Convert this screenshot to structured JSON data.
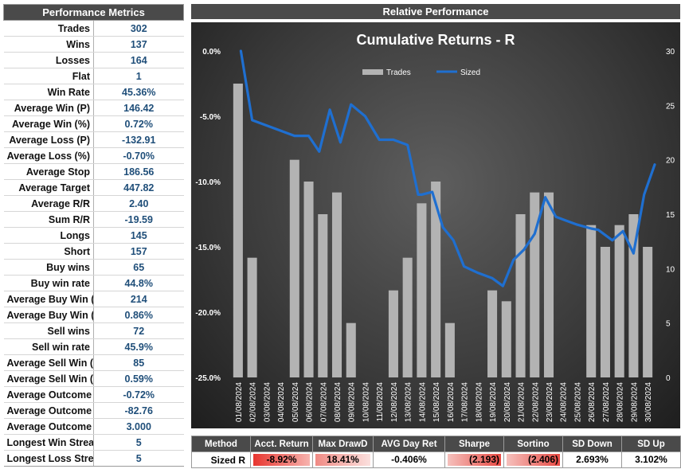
{
  "metrics": {
    "title": "Performance Metrics",
    "rows": [
      {
        "label": "Trades",
        "value": "302"
      },
      {
        "label": "Wins",
        "value": "137"
      },
      {
        "label": "Losses",
        "value": "164"
      },
      {
        "label": "Flat",
        "value": "1"
      },
      {
        "label": "Win Rate",
        "value": "45.36%"
      },
      {
        "label": "Average Win (P)",
        "value": "146.42"
      },
      {
        "label": "Average Win (%)",
        "value": "0.72%"
      },
      {
        "label": "Average Loss (P)",
        "value": "-132.91"
      },
      {
        "label": "Average Loss (%)",
        "value": "-0.70%"
      },
      {
        "label": "Average Stop",
        "value": "186.56"
      },
      {
        "label": "Average Target",
        "value": "447.82"
      },
      {
        "label": "Average R/R",
        "value": "2.40"
      },
      {
        "label": "Sum R/R",
        "value": "-19.59"
      },
      {
        "label": "Longs",
        "value": "145"
      },
      {
        "label": "Short",
        "value": "157"
      },
      {
        "label": "Buy wins",
        "value": "65"
      },
      {
        "label": "Buy win rate",
        "value": "44.8%"
      },
      {
        "label": "Average Buy Win (P)",
        "value": "214"
      },
      {
        "label": "Average Buy Win (%)",
        "value": "0.86%"
      },
      {
        "label": "Sell wins",
        "value": "72"
      },
      {
        "label": "Sell win rate",
        "value": "45.9%"
      },
      {
        "label": "Average Sell Win (P)",
        "value": "85"
      },
      {
        "label": "Average Sell Win (%)",
        "value": "0.59%"
      },
      {
        "label": "Average Outcome (%)",
        "value": "-0.72%"
      },
      {
        "label": "Average Outcome (P)",
        "value": "-82.76"
      },
      {
        "label": "Average Outcome (R)",
        "value": "3.000"
      },
      {
        "label": "Longest Win Streak",
        "value": "5"
      },
      {
        "label": "Longest Loss Streak",
        "value": "5"
      }
    ]
  },
  "relative": {
    "title": "Relative Performance"
  },
  "chart_data": {
    "type": "bar+line",
    "title": "Cumulative Returns - R",
    "legend_position": "top",
    "categories": [
      "01/08/2024",
      "02/08/2024",
      "03/08/2024",
      "04/08/2024",
      "05/08/2024",
      "06/08/2024",
      "07/08/2024",
      "08/08/2024",
      "09/08/2024",
      "10/08/2024",
      "11/08/2024",
      "12/08/2024",
      "13/08/2024",
      "14/08/2024",
      "15/08/2024",
      "16/08/2024",
      "17/08/2024",
      "18/08/2024",
      "19/08/2024",
      "20/08/2024",
      "21/08/2024",
      "22/08/2024",
      "23/08/2024",
      "24/08/2024",
      "25/08/2024",
      "26/08/2024",
      "27/08/2024",
      "28/08/2024",
      "29/08/2024",
      "30/08/2024"
    ],
    "left_axis": {
      "min": -0.25,
      "max": 0.0,
      "ticks": [
        "0.0%",
        "-5.0%",
        "-10.0%",
        "-15.0%",
        "-20.0%",
        "-25.0%"
      ]
    },
    "right_axis": {
      "min": 0,
      "max": 30,
      "ticks": [
        "30",
        "25",
        "20",
        "15",
        "10",
        "5",
        "0"
      ]
    },
    "series": [
      {
        "name": "Trades",
        "type": "bar",
        "axis": "right",
        "color": "#b3b3b3",
        "values": [
          27,
          11,
          0,
          0,
          20,
          18,
          15,
          17,
          5,
          0,
          0,
          8,
          11,
          16,
          18,
          5,
          0,
          0,
          8,
          7,
          15,
          17,
          17,
          0,
          0,
          14,
          12,
          14,
          15,
          12
        ]
      },
      {
        "name": "Sized",
        "type": "line",
        "axis": "left",
        "color": "#1f6fd0",
        "x": [
          0.2,
          1,
          4,
          5,
          5.75,
          6.5,
          7.25,
          8,
          9,
          10,
          11,
          12,
          12.75,
          13,
          13.75,
          14.5,
          15.25,
          16,
          17,
          18,
          18.75,
          19.5,
          20.25,
          21,
          21.75,
          22.5,
          23.25,
          24,
          25,
          25.5,
          26.5,
          27.25,
          28,
          28.75,
          29.5
        ],
        "values": [
          0,
          -5.3,
          -6.5,
          -6.5,
          -7.7,
          -4.5,
          -7.0,
          -4.1,
          -5.0,
          -6.8,
          -6.8,
          -7.2,
          -11.0,
          -11.0,
          -10.8,
          -13.5,
          -14.5,
          -16.5,
          -17.0,
          -17.4,
          -18.0,
          -16.0,
          -15.2,
          -14.0,
          -11.2,
          -12.7,
          -13.0,
          -13.3,
          -13.6,
          -13.7,
          -14.5,
          -13.8,
          -15.5,
          -11.0,
          -8.7
        ]
      }
    ]
  },
  "stats": {
    "headers": [
      "Method",
      "Acct. Return",
      "Max DrawD",
      "AVG Day Ret",
      "Sharpe",
      "Sortino",
      "SD Down",
      "SD Up"
    ],
    "row": [
      "Sized R",
      "-8.92%",
      "18.41%",
      "-0.406%",
      "(2.193)",
      "(2.406)",
      "2.693%",
      "3.102%"
    ]
  }
}
